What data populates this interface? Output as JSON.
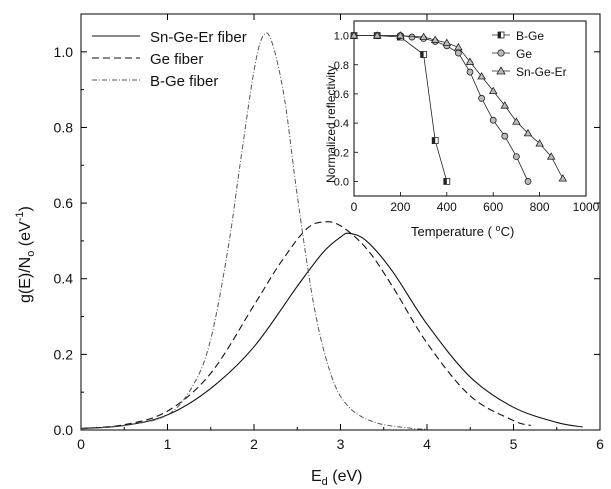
{
  "chart_data": [
    {
      "type": "line",
      "xlabel": "E",
      "xlabel_sub": "d",
      "xlabel_unit": " (eV)",
      "ylabel": "g(E)/N",
      "ylabel_sub": "o",
      "ylabel_unit_pre": " (eV",
      "ylabel_unit_sup": "-1",
      "ylabel_unit_post": ")",
      "xlim": [
        0,
        6
      ],
      "ylim": [
        0,
        1.1
      ],
      "xticks": [
        0,
        1,
        2,
        3,
        4,
        5,
        6
      ],
      "yticks": [
        0.0,
        0.2,
        0.4,
        0.6,
        0.8,
        1.0
      ],
      "xtick_labels": [
        "0",
        "1",
        "2",
        "3",
        "4",
        "5",
        "6"
      ],
      "ytick_labels": [
        "0.0",
        "0.2",
        "0.4",
        "0.6",
        "0.8",
        "1.0"
      ],
      "legend": "top-left",
      "grid": false,
      "series": [
        {
          "name": "Sn-Ge-Er fiber",
          "style": "solid",
          "color": "#111111",
          "x": [
            0.0,
            0.5,
            1.0,
            1.5,
            2.0,
            2.5,
            2.8,
            3.0,
            3.1,
            3.3,
            3.6,
            4.0,
            4.5,
            5.0,
            5.5,
            5.8
          ],
          "y": [
            0.004,
            0.012,
            0.04,
            0.11,
            0.22,
            0.38,
            0.47,
            0.51,
            0.52,
            0.5,
            0.42,
            0.28,
            0.14,
            0.06,
            0.02,
            0.008
          ]
        },
        {
          "name": "Ge fiber",
          "style": "dashed",
          "color": "#111111",
          "x": [
            0.0,
            0.5,
            1.0,
            1.5,
            2.0,
            2.3,
            2.6,
            2.8,
            3.0,
            3.3,
            3.6,
            4.0,
            4.5,
            5.0,
            5.2
          ],
          "y": [
            0.004,
            0.014,
            0.05,
            0.15,
            0.33,
            0.44,
            0.53,
            0.55,
            0.54,
            0.48,
            0.38,
            0.23,
            0.09,
            0.025,
            0.012
          ]
        },
        {
          "name": "B-Ge fiber",
          "style": "dash-dot",
          "color": "#555555",
          "x": [
            0.0,
            0.5,
            1.0,
            1.3,
            1.5,
            1.7,
            1.85,
            2.0,
            2.1,
            2.2,
            2.35,
            2.5,
            2.7,
            2.9,
            3.1,
            3.4,
            3.8,
            4.0
          ],
          "y": [
            0.003,
            0.012,
            0.04,
            0.12,
            0.24,
            0.48,
            0.72,
            0.95,
            1.04,
            1.03,
            0.88,
            0.62,
            0.32,
            0.14,
            0.06,
            0.02,
            0.005,
            0.002
          ]
        }
      ]
    },
    {
      "type": "line",
      "xlabel": "Temperature ( ",
      "xlabel_sup": "o",
      "xlabel_unit": "C)",
      "ylabel": "Normalized reflectivity",
      "xlim": [
        0,
        1000
      ],
      "ylim": [
        -0.1,
        1.1
      ],
      "xticks": [
        0,
        200,
        400,
        600,
        800,
        1000
      ],
      "yticks": [
        0.0,
        0.2,
        0.4,
        0.6,
        0.8,
        1.0
      ],
      "xtick_labels": [
        "0",
        "200",
        "400",
        "600",
        "800",
        "1000"
      ],
      "ytick_labels": [
        "0.0",
        "0.2",
        "0.4",
        "0.6",
        "0.8",
        "1.0"
      ],
      "legend": "right",
      "grid": false,
      "series": [
        {
          "name": "B-Ge",
          "marker": "half-square",
          "x": [
            0,
            100,
            200,
            300,
            350,
            400
          ],
          "y": [
            1.0,
            1.0,
            0.99,
            0.87,
            0.28,
            0.0
          ]
        },
        {
          "name": "Ge",
          "marker": "circle",
          "x": [
            0,
            100,
            200,
            250,
            300,
            350,
            400,
            450,
            500,
            550,
            600,
            650,
            700,
            750
          ],
          "y": [
            1.0,
            1.0,
            1.0,
            0.99,
            0.98,
            0.96,
            0.93,
            0.88,
            0.75,
            0.57,
            0.42,
            0.31,
            0.17,
            0.0
          ]
        },
        {
          "name": "Sn-Ge-Er",
          "marker": "triangle",
          "x": [
            0,
            100,
            200,
            300,
            350,
            400,
            450,
            500,
            550,
            600,
            650,
            700,
            750,
            800,
            850,
            900
          ],
          "y": [
            1.0,
            1.0,
            1.0,
            0.99,
            0.97,
            0.95,
            0.92,
            0.82,
            0.72,
            0.62,
            0.52,
            0.41,
            0.33,
            0.26,
            0.17,
            0.02
          ]
        }
      ]
    }
  ]
}
